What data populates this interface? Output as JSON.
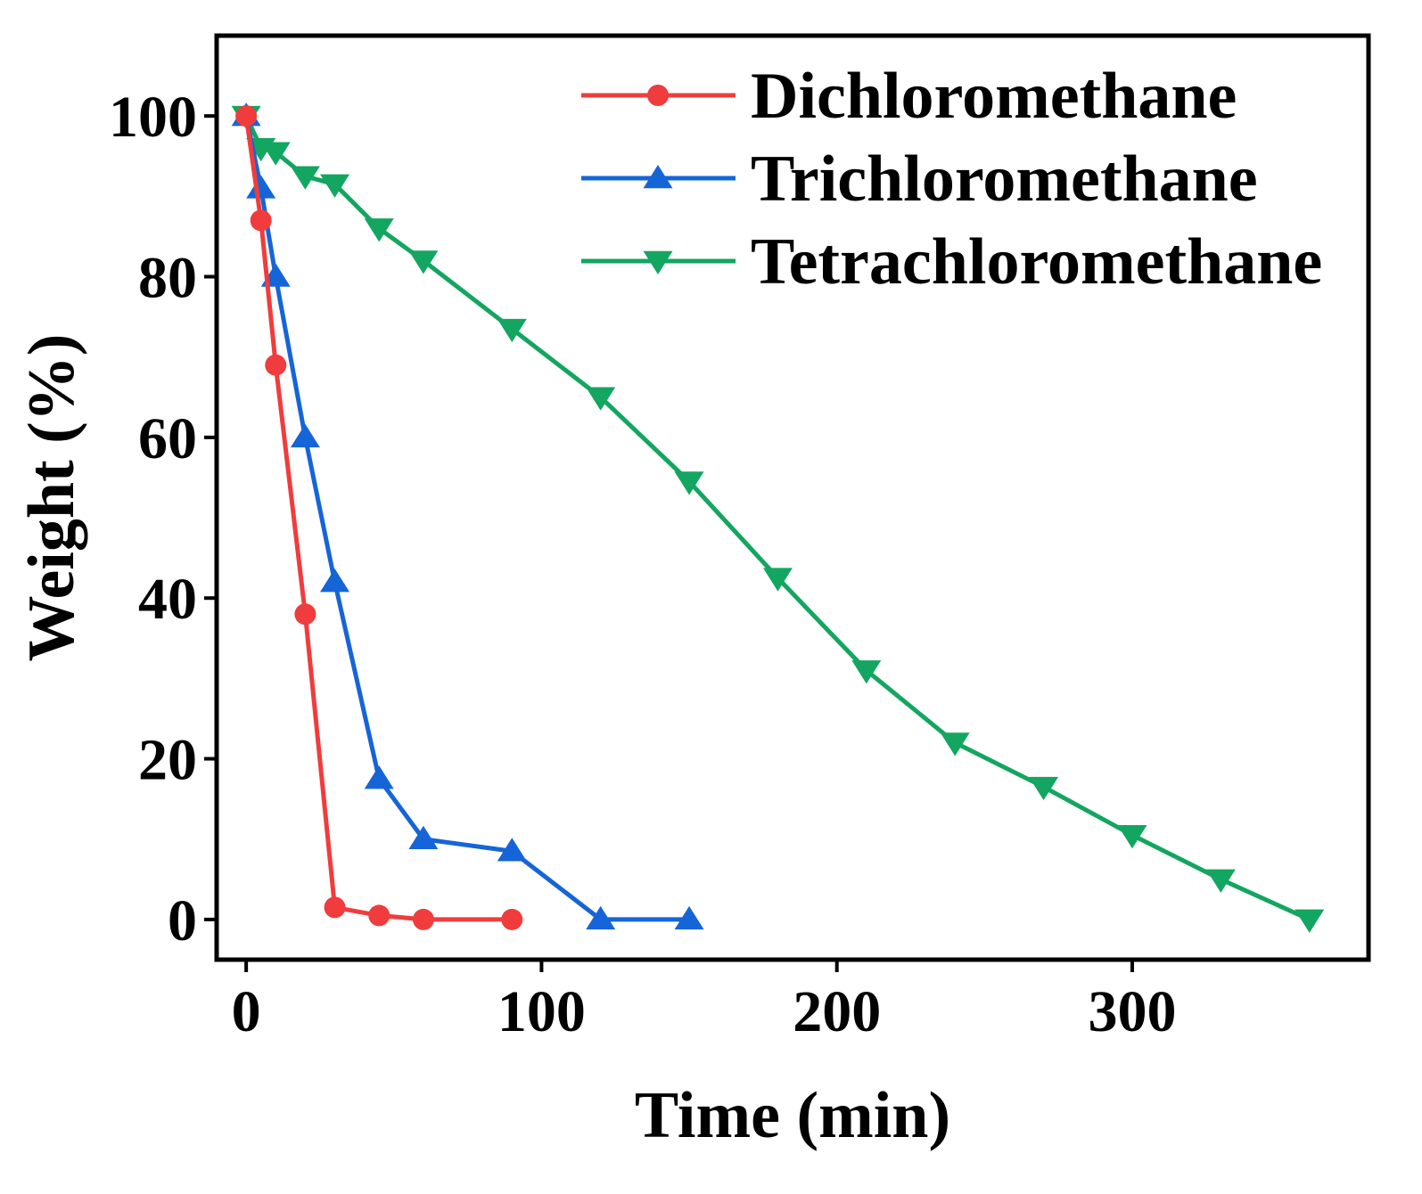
{
  "chart_data": {
    "type": "line",
    "xlabel": "Time (min)",
    "ylabel": "Weight (%)",
    "xlim": [
      -10,
      380
    ],
    "ylim": [
      -5,
      110
    ],
    "xticks": [
      0,
      100,
      200,
      300
    ],
    "yticks": [
      0,
      20,
      40,
      60,
      80,
      100
    ],
    "grid": false,
    "legend_position": "top-right",
    "series": [
      {
        "name": "Dichloromethane",
        "color": "#f03c3c",
        "marker": "circle",
        "x": [
          0,
          5,
          10,
          20,
          30,
          45,
          60,
          90
        ],
        "y": [
          100,
          87,
          69,
          38,
          1.5,
          0.5,
          0,
          0
        ]
      },
      {
        "name": "Trichloromethane",
        "color": "#1565d8",
        "marker": "triangle-up",
        "x": [
          0,
          5,
          10,
          20,
          30,
          45,
          60,
          90,
          120,
          150
        ],
        "y": [
          100,
          91,
          80,
          60,
          42,
          17.5,
          10,
          8.5,
          0,
          0
        ]
      },
      {
        "name": "Tetrachloromethane",
        "color": "#13a660",
        "marker": "triangle-down",
        "x": [
          0,
          5,
          10,
          20,
          30,
          45,
          60,
          90,
          120,
          150,
          180,
          210,
          240,
          270,
          300,
          330,
          360
        ],
        "y": [
          100,
          96,
          95.5,
          92.5,
          91.5,
          86,
          82,
          73.5,
          65,
          54.5,
          42.5,
          31,
          22,
          16.5,
          10.5,
          5,
          0
        ]
      }
    ]
  }
}
